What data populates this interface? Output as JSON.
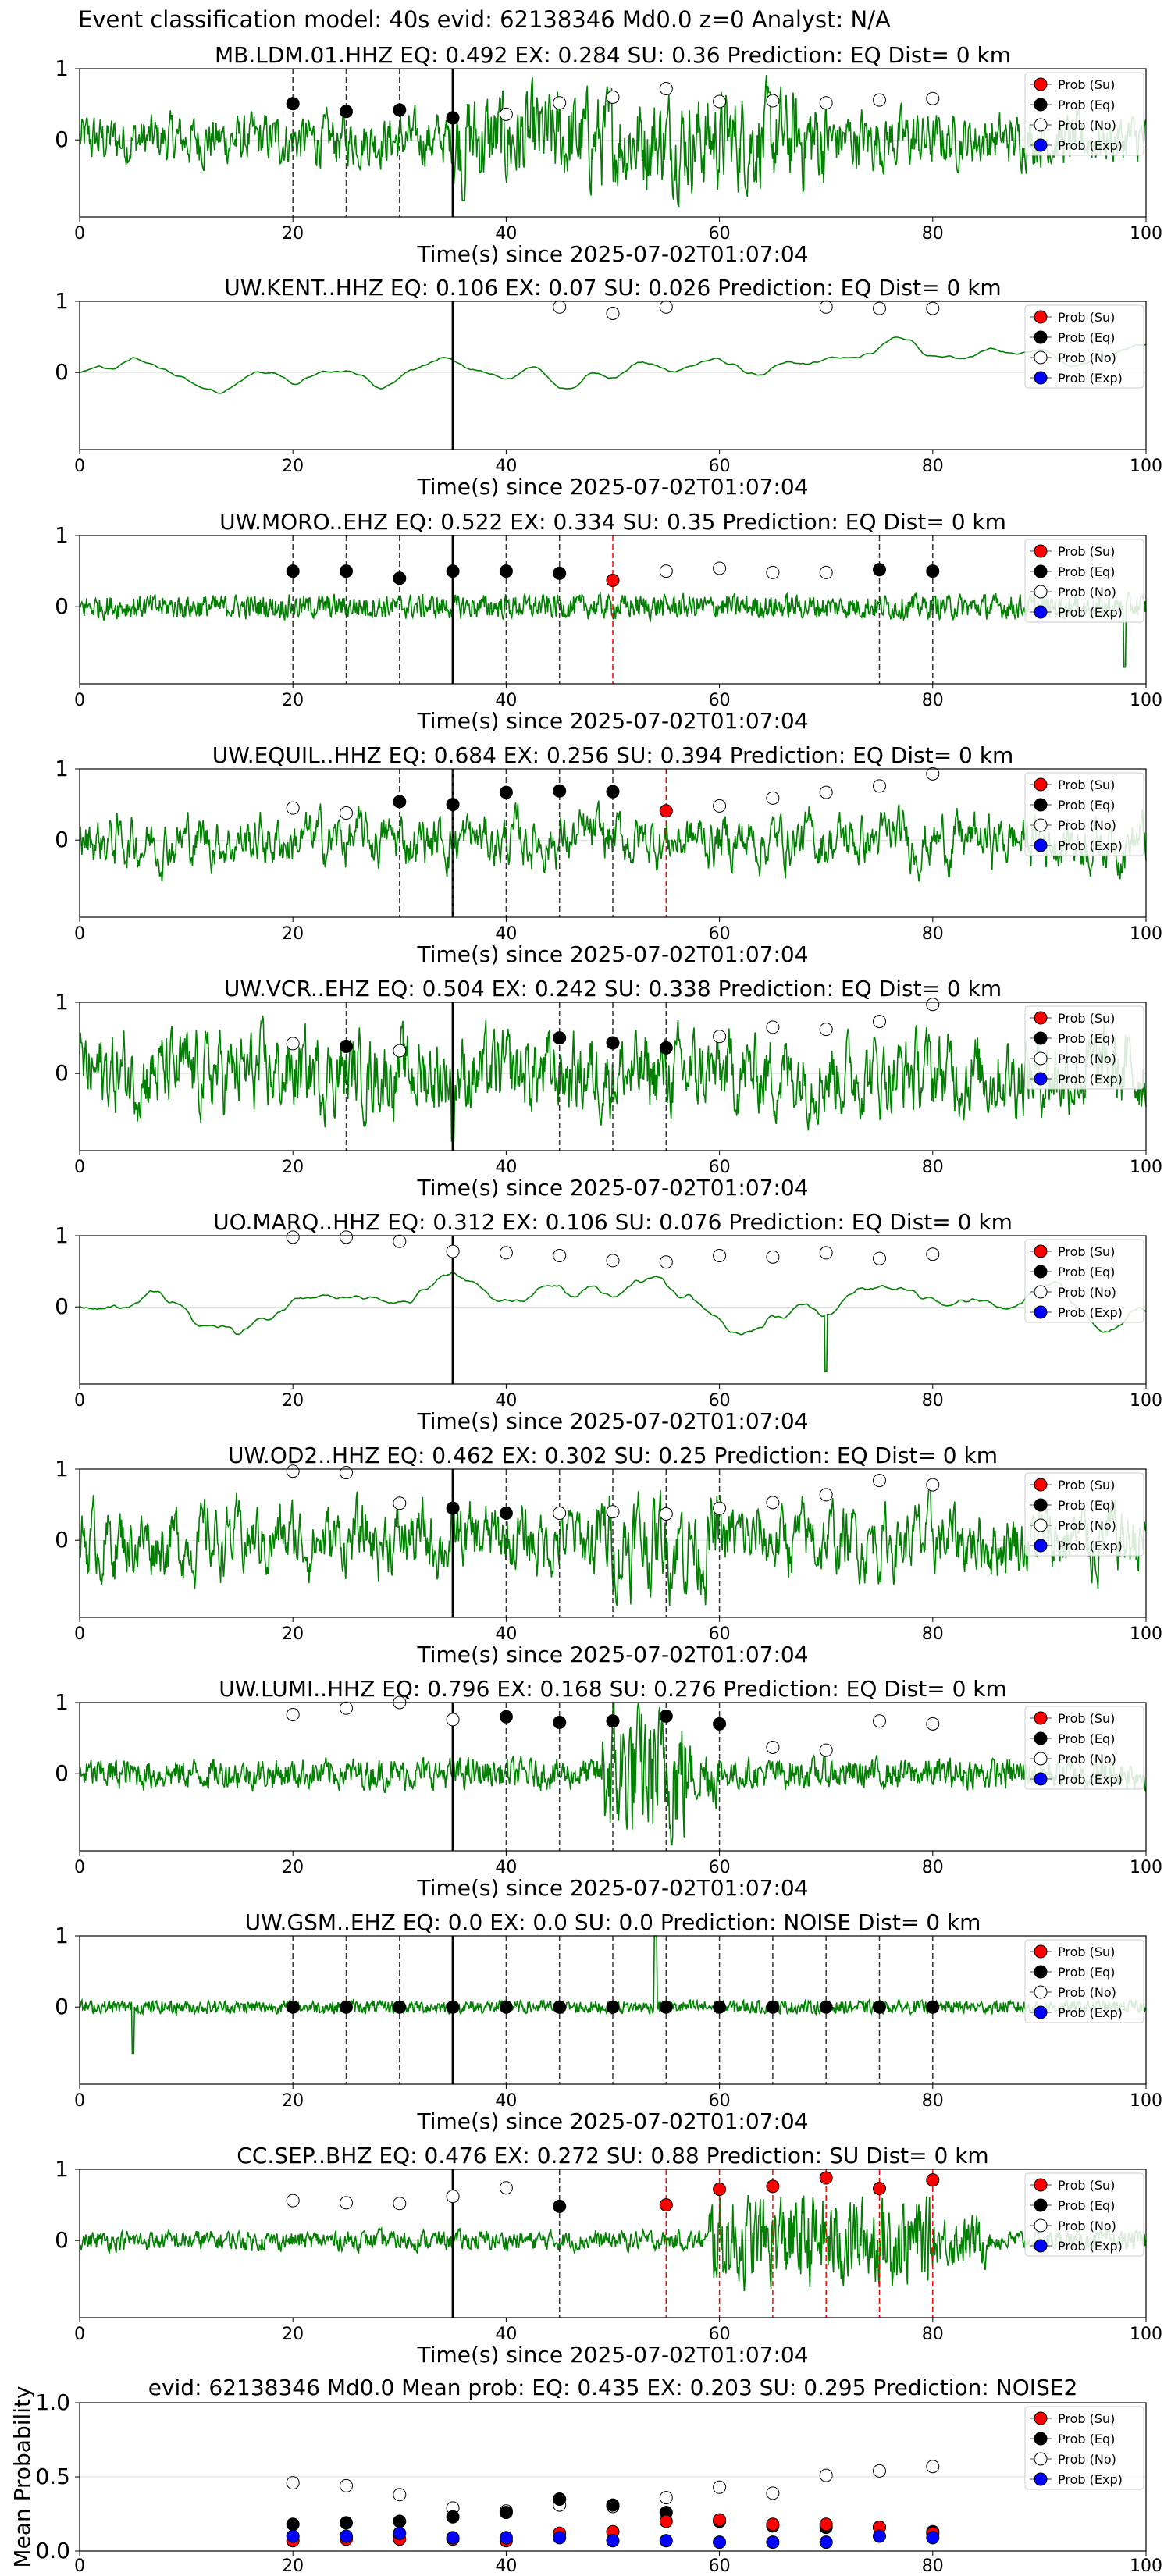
{
  "figure_title": "Event classification model: 40s evid: 62138346 Md0.0 z=0 Analyst: N/A",
  "x_axis_label": "Time(s) since 2025-07-02T01:07:04",
  "colors": {
    "waveform": "#008000",
    "su": "#ff0000",
    "eq": "#000000",
    "no": "#ffffff",
    "exp": "#0000ff",
    "onset": "#000000"
  },
  "legend": [
    "Prob (Su)",
    "Prob (Eq)",
    "Prob (No)",
    "Prob (Exp)"
  ],
  "chart_data": [
    {
      "type": "line",
      "title": "MB.LDM.01.HHZ   EQ: 0.492  EX: 0.284  SU: 0.36   Prediction: EQ    Dist= 0 km",
      "xlim": [
        0,
        100
      ],
      "x_ticks": [
        0,
        20,
        40,
        60,
        80,
        100
      ],
      "y_ticks": [
        "1",
        "0"
      ],
      "onset_line": 35,
      "amp": 0.28,
      "burst": {
        "start": 35,
        "end": 70,
        "gain": 1.9,
        "tail": 80,
        "tail_gain": 1.2
      },
      "smooth": 0.55,
      "spikes": [
        [
          36,
          -0.85
        ]
      ],
      "markers": {
        "eq": [
          [
            20,
            0.51
          ],
          [
            25,
            0.4
          ],
          [
            30,
            0.42
          ],
          [
            35,
            0.31
          ]
        ],
        "no": [
          [
            40,
            0.36
          ],
          [
            45,
            0.52
          ],
          [
            50,
            0.6
          ],
          [
            55,
            0.72
          ],
          [
            60,
            0.54
          ],
          [
            65,
            0.55
          ],
          [
            70,
            0.52
          ],
          [
            75,
            0.56
          ],
          [
            80,
            0.58
          ]
        ],
        "su": []
      },
      "vlines_eq": [
        20,
        25,
        30
      ],
      "vlines_su": []
    },
    {
      "type": "line",
      "title": "UW.KENT..HHZ   EQ: 0.106  EX: 0.07  SU: 0.026   Prediction: EQ    Dist= 0 km",
      "xlim": [
        0,
        100
      ],
      "x_ticks": [
        0,
        20,
        40,
        60,
        80,
        100
      ],
      "y_ticks": [
        "1",
        "0"
      ],
      "onset_line": 35,
      "amp": 0.52,
      "burst": null,
      "smooth": 0.97,
      "spikes": [],
      "markers": {
        "eq": [],
        "no": [
          [
            45,
            0.92
          ],
          [
            50,
            0.83
          ],
          [
            55,
            0.92
          ],
          [
            70,
            0.92
          ],
          [
            75,
            0.9
          ],
          [
            80,
            0.9
          ]
        ],
        "su": []
      },
      "vlines_eq": [],
      "vlines_su": []
    },
    {
      "type": "line",
      "title": "UW.MORO..EHZ   EQ: 0.522  EX: 0.334  SU: 0.35   Prediction: EQ    Dist= 0 km",
      "xlim": [
        0,
        100
      ],
      "x_ticks": [
        0,
        20,
        40,
        60,
        80,
        100
      ],
      "y_ticks": [
        "1",
        "0"
      ],
      "onset_line": 35,
      "amp": 0.1,
      "burst": null,
      "smooth": 0.3,
      "spikes": [
        [
          98,
          -0.85
        ]
      ],
      "markers": {
        "eq": [
          [
            20,
            0.5
          ],
          [
            25,
            0.5
          ],
          [
            30,
            0.4
          ],
          [
            35,
            0.5
          ],
          [
            40,
            0.5
          ],
          [
            45,
            0.47
          ],
          [
            75,
            0.52
          ],
          [
            80,
            0.5
          ]
        ],
        "no": [
          [
            55,
            0.5
          ],
          [
            60,
            0.54
          ],
          [
            65,
            0.48
          ],
          [
            70,
            0.48
          ]
        ],
        "su": [
          [
            50,
            0.37
          ]
        ]
      },
      "vlines_eq": [
        20,
        25,
        30,
        40,
        45,
        75,
        80
      ],
      "vlines_su": [
        50
      ]
    },
    {
      "type": "line",
      "title": "UW.EQUIL..HHZ   EQ: 0.684  EX: 0.256  SU: 0.394   Prediction: EQ    Dist= 0 km",
      "xlim": [
        0,
        100
      ],
      "x_ticks": [
        0,
        20,
        40,
        60,
        80,
        100
      ],
      "y_ticks": [
        "1",
        "0"
      ],
      "onset_line": 35,
      "amp": 0.45,
      "burst": null,
      "smooth": 0.75,
      "spikes": [],
      "markers": {
        "eq": [
          [
            30,
            0.54
          ],
          [
            35,
            0.5
          ],
          [
            40,
            0.67
          ],
          [
            45,
            0.69
          ],
          [
            50,
            0.68
          ]
        ],
        "no": [
          [
            20,
            0.45
          ],
          [
            25,
            0.38
          ],
          [
            60,
            0.48
          ],
          [
            65,
            0.59
          ],
          [
            70,
            0.67
          ],
          [
            75,
            0.76
          ],
          [
            80,
            0.93
          ]
        ],
        "su": [
          [
            55,
            0.41
          ]
        ]
      },
      "vlines_eq": [
        30,
        35,
        40,
        45,
        50
      ],
      "vlines_su": [
        55
      ]
    },
    {
      "type": "line",
      "title": "UW.VCR..EHZ   EQ: 0.504  EX: 0.242  SU: 0.338   Prediction: EQ    Dist= 0 km",
      "xlim": [
        0,
        100
      ],
      "x_ticks": [
        0,
        20,
        40,
        60,
        80,
        100
      ],
      "y_ticks": [
        "1",
        "0"
      ],
      "onset_line": 35,
      "amp": 0.48,
      "burst": null,
      "smooth": 0.6,
      "spikes": [
        [
          35,
          -0.95
        ]
      ],
      "markers": {
        "eq": [
          [
            25,
            0.38
          ],
          [
            45,
            0.5
          ],
          [
            50,
            0.43
          ],
          [
            55,
            0.36
          ]
        ],
        "no": [
          [
            20,
            0.42
          ],
          [
            30,
            0.32
          ],
          [
            60,
            0.52
          ],
          [
            65,
            0.65
          ],
          [
            70,
            0.62
          ],
          [
            75,
            0.73
          ],
          [
            80,
            0.97
          ]
        ],
        "su": []
      },
      "vlines_eq": [
        25,
        45,
        50,
        55
      ],
      "vlines_su": []
    },
    {
      "type": "line",
      "title": "UO.MARQ..HHZ   EQ: 0.312  EX: 0.106  SU: 0.076   Prediction: EQ    Dist= 0 km",
      "xlim": [
        0,
        100
      ],
      "x_ticks": [
        0,
        20,
        40,
        60,
        80,
        100
      ],
      "y_ticks": [
        "1",
        "0"
      ],
      "onset_line": 35,
      "amp": 0.52,
      "burst": null,
      "smooth": 0.96,
      "spikes": [
        [
          70,
          -0.9
        ]
      ],
      "markers": {
        "eq": [],
        "no": [
          [
            20,
            0.98
          ],
          [
            25,
            0.98
          ],
          [
            30,
            0.92
          ],
          [
            35,
            0.78
          ],
          [
            40,
            0.76
          ],
          [
            45,
            0.72
          ],
          [
            50,
            0.65
          ],
          [
            55,
            0.63
          ],
          [
            60,
            0.72
          ],
          [
            65,
            0.7
          ],
          [
            70,
            0.76
          ],
          [
            75,
            0.68
          ],
          [
            80,
            0.74
          ]
        ],
        "su": []
      },
      "vlines_eq": [],
      "vlines_su": []
    },
    {
      "type": "line",
      "title": "UW.OD2..HHZ   EQ: 0.462  EX: 0.302  SU: 0.25   Prediction: EQ    Dist= 0 km",
      "xlim": [
        0,
        100
      ],
      "x_ticks": [
        0,
        20,
        40,
        60,
        80,
        100
      ],
      "y_ticks": [
        "1",
        "0"
      ],
      "onset_line": 35,
      "amp": 0.52,
      "burst": {
        "start": 48,
        "end": 60,
        "gain": 1.4,
        "tail": 62,
        "tail_gain": 1.1
      },
      "smooth": 0.7,
      "spikes": [],
      "markers": {
        "eq": [
          [
            35,
            0.45
          ],
          [
            40,
            0.38
          ]
        ],
        "no": [
          [
            20,
            0.97
          ],
          [
            25,
            0.95
          ],
          [
            30,
            0.52
          ],
          [
            45,
            0.38
          ],
          [
            50,
            0.4
          ],
          [
            55,
            0.37
          ],
          [
            60,
            0.45
          ],
          [
            65,
            0.53
          ],
          [
            70,
            0.64
          ],
          [
            75,
            0.84
          ],
          [
            80,
            0.78
          ]
        ],
        "su": []
      },
      "vlines_eq": [
        40,
        45,
        50,
        55,
        60
      ],
      "vlines_su": []
    },
    {
      "type": "line",
      "title": "UW.LUMI..HHZ   EQ: 0.796  EX: 0.168  SU: 0.276   Prediction: EQ    Dist= 0 km",
      "xlim": [
        0,
        100
      ],
      "x_ticks": [
        0,
        20,
        40,
        60,
        80,
        100
      ],
      "y_ticks": [
        "1",
        "0"
      ],
      "onset_line": 35,
      "amp": 0.14,
      "burst": {
        "start": 49,
        "end": 57,
        "gain": 4.5,
        "tail": 60,
        "tail_gain": 2.0
      },
      "smooth": 0.4,
      "spikes": [],
      "markers": {
        "eq": [
          [
            40,
            0.8
          ],
          [
            45,
            0.72
          ],
          [
            50,
            0.74
          ],
          [
            55,
            0.81
          ],
          [
            60,
            0.7
          ]
        ],
        "no": [
          [
            20,
            0.83
          ],
          [
            25,
            0.92
          ],
          [
            30,
            1.0
          ],
          [
            35,
            0.76
          ],
          [
            65,
            0.37
          ],
          [
            70,
            0.33
          ],
          [
            75,
            0.74
          ],
          [
            80,
            0.7
          ]
        ],
        "su": []
      },
      "vlines_eq": [
        40,
        45,
        50,
        55,
        60
      ],
      "vlines_su": []
    },
    {
      "type": "line",
      "title": "UW.GSM..EHZ   EQ: 0.0  EX: 0.0  SU: 0.0   Prediction: NOISE    Dist= 0 km",
      "xlim": [
        0,
        100
      ],
      "x_ticks": [
        0,
        20,
        40,
        60,
        80,
        100
      ],
      "y_ticks": [
        "1",
        "0"
      ],
      "onset_line": 35,
      "amp": 0.05,
      "burst": null,
      "smooth": 0.2,
      "spikes": [
        [
          5,
          -0.65
        ],
        [
          54,
          1.0
        ]
      ],
      "markers": {
        "eq": [
          [
            20,
            0.0
          ],
          [
            25,
            0.0
          ],
          [
            30,
            0.0
          ],
          [
            35,
            0.0
          ],
          [
            40,
            0.0
          ],
          [
            45,
            0.0
          ],
          [
            50,
            0.0
          ],
          [
            55,
            0.0
          ],
          [
            60,
            0.0
          ],
          [
            65,
            0.0
          ],
          [
            70,
            0.0
          ],
          [
            75,
            0.0
          ],
          [
            80,
            0.0
          ]
        ],
        "no": [],
        "su": []
      },
      "vlines_eq": [
        20,
        25,
        30,
        40,
        45,
        50,
        55,
        60,
        65,
        70,
        75,
        80
      ],
      "vlines_su": []
    },
    {
      "type": "line",
      "title": "CC.SEP..BHZ   EQ: 0.476  EX: 0.272  SU: 0.88   Prediction: SU    Dist= 0 km",
      "xlim": [
        0,
        100
      ],
      "x_ticks": [
        0,
        20,
        40,
        60,
        80,
        100
      ],
      "y_ticks": [
        "1",
        "0"
      ],
      "onset_line": 35,
      "amp": 0.09,
      "burst": {
        "start": 59,
        "end": 80,
        "gain": 4.5,
        "tail": 85,
        "tail_gain": 2.5
      },
      "smooth": 0.4,
      "spikes": [],
      "markers": {
        "eq": [
          [
            45,
            0.48
          ]
        ],
        "no": [
          [
            20,
            0.56
          ],
          [
            25,
            0.53
          ],
          [
            30,
            0.52
          ],
          [
            35,
            0.62
          ],
          [
            40,
            0.74
          ]
        ],
        "su": [
          [
            55,
            0.5
          ],
          [
            60,
            0.72
          ],
          [
            65,
            0.76
          ],
          [
            70,
            0.88
          ],
          [
            75,
            0.73
          ],
          [
            80,
            0.85
          ]
        ]
      },
      "vlines_eq": [
        45
      ],
      "vlines_su": [
        55,
        60,
        65,
        70,
        75,
        80
      ]
    },
    {
      "type": "scatter",
      "title": "evid: 62138346  Md0.0   Mean prob:   EQ: 0.435  EX: 0.203  SU: 0.295   Prediction: NOISE2",
      "ylabel": "Mean Probability",
      "xlim": [
        0,
        100
      ],
      "ylim": [
        0,
        1
      ],
      "x_ticks": [
        0,
        20,
        40,
        60,
        80,
        100
      ],
      "y_ticks": [
        "1.0",
        "0.5",
        "0.0"
      ],
      "x": [
        20,
        25,
        30,
        35,
        40,
        45,
        50,
        55,
        60,
        65,
        70,
        75,
        80
      ],
      "series": [
        {
          "name": "Prob (Su)",
          "values": [
            0.07,
            0.08,
            0.08,
            0.08,
            0.07,
            0.12,
            0.13,
            0.2,
            0.21,
            0.18,
            0.18,
            0.16,
            0.12
          ]
        },
        {
          "name": "Prob (Eq)",
          "values": [
            0.18,
            0.19,
            0.2,
            0.23,
            0.26,
            0.35,
            0.31,
            0.26,
            0.2,
            0.17,
            0.16,
            0.16,
            0.13
          ]
        },
        {
          "name": "Prob (No)",
          "values": [
            0.46,
            0.44,
            0.38,
            0.29,
            0.27,
            0.31,
            0.3,
            0.36,
            0.43,
            0.39,
            0.51,
            0.54,
            0.57
          ]
        },
        {
          "name": "Prob (Exp)",
          "values": [
            0.1,
            0.1,
            0.12,
            0.09,
            0.09,
            0.09,
            0.07,
            0.07,
            0.06,
            0.06,
            0.06,
            0.1,
            0.09
          ]
        }
      ]
    }
  ]
}
